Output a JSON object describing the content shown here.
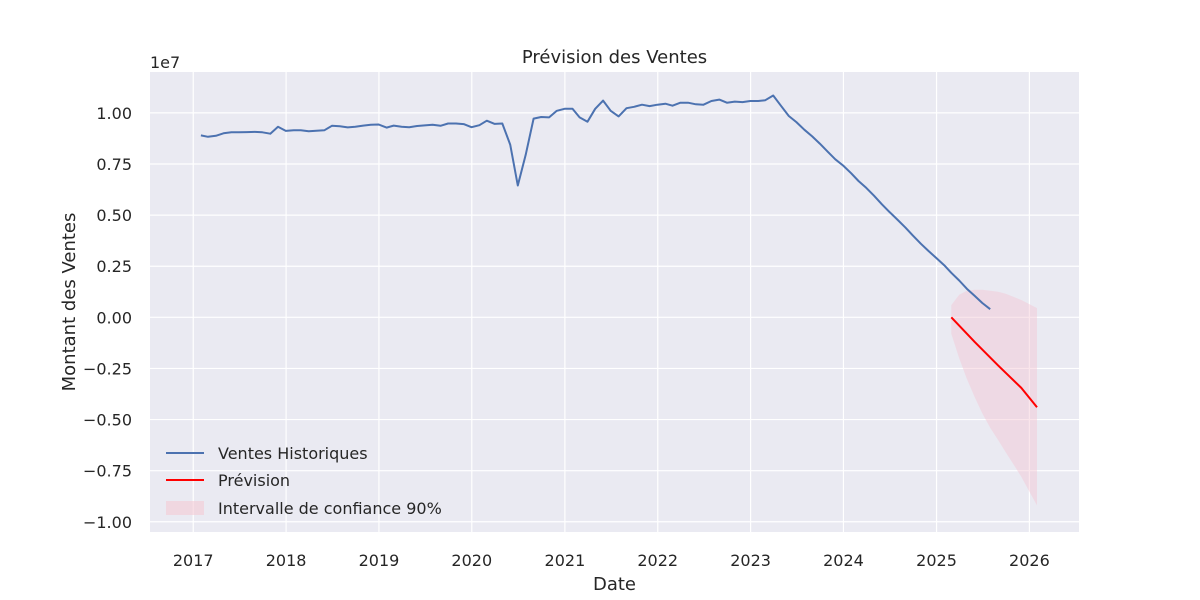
{
  "chart_data": {
    "type": "line",
    "title": "Prévision des Ventes",
    "xlabel": "Date",
    "ylabel": "Montant des Ventes",
    "y_offset_label": "1e7",
    "y_scale": 10000000,
    "xlim": [
      "2016-07-15",
      "2026-07-15"
    ],
    "ylim": [
      -1.05,
      1.2
    ],
    "x_ticks": [
      {
        "date": "2017-01-01",
        "label": "2017"
      },
      {
        "date": "2018-01-01",
        "label": "2018"
      },
      {
        "date": "2019-01-01",
        "label": "2019"
      },
      {
        "date": "2020-01-01",
        "label": "2020"
      },
      {
        "date": "2021-01-01",
        "label": "2021"
      },
      {
        "date": "2022-01-01",
        "label": "2022"
      },
      {
        "date": "2023-01-01",
        "label": "2023"
      },
      {
        "date": "2024-01-01",
        "label": "2024"
      },
      {
        "date": "2025-01-01",
        "label": "2025"
      },
      {
        "date": "2026-01-01",
        "label": "2026"
      }
    ],
    "y_ticks": [
      {
        "value": 1.0,
        "label": "1.00"
      },
      {
        "value": 0.75,
        "label": "0.75"
      },
      {
        "value": 0.5,
        "label": "0.50"
      },
      {
        "value": 0.25,
        "label": "0.25"
      },
      {
        "value": 0.0,
        "label": "0.00"
      },
      {
        "value": -0.25,
        "label": "−0.25"
      },
      {
        "value": -0.5,
        "label": "−0.50"
      },
      {
        "value": -0.75,
        "label": "−0.75"
      },
      {
        "value": -1.0,
        "label": "−1.00"
      }
    ],
    "grid": true,
    "legend_position": "lower-left",
    "series": [
      {
        "name": "Ventes Historiques",
        "color": "#4c72b0",
        "points": [
          [
            "2017-01-31",
            0.89
          ],
          [
            "2017-02-28",
            0.883
          ],
          [
            "2017-03-31",
            0.888
          ],
          [
            "2017-04-30",
            0.9
          ],
          [
            "2017-05-31",
            0.905
          ],
          [
            "2017-06-30",
            0.905
          ],
          [
            "2017-07-31",
            0.906
          ],
          [
            "2017-08-31",
            0.907
          ],
          [
            "2017-09-30",
            0.905
          ],
          [
            "2017-10-31",
            0.898
          ],
          [
            "2017-11-30",
            0.932
          ],
          [
            "2017-12-31",
            0.912
          ],
          [
            "2018-01-31",
            0.915
          ],
          [
            "2018-02-28",
            0.915
          ],
          [
            "2018-03-31",
            0.91
          ],
          [
            "2018-04-30",
            0.913
          ],
          [
            "2018-05-31",
            0.915
          ],
          [
            "2018-06-30",
            0.937
          ],
          [
            "2018-07-31",
            0.935
          ],
          [
            "2018-08-31",
            0.929
          ],
          [
            "2018-09-30",
            0.932
          ],
          [
            "2018-10-31",
            0.938
          ],
          [
            "2018-11-30",
            0.942
          ],
          [
            "2018-12-31",
            0.943
          ],
          [
            "2019-01-31",
            0.928
          ],
          [
            "2019-02-28",
            0.938
          ],
          [
            "2019-03-31",
            0.932
          ],
          [
            "2019-04-30",
            0.93
          ],
          [
            "2019-05-31",
            0.936
          ],
          [
            "2019-06-30",
            0.939
          ],
          [
            "2019-07-31",
            0.942
          ],
          [
            "2019-08-31",
            0.937
          ],
          [
            "2019-09-30",
            0.948
          ],
          [
            "2019-10-31",
            0.948
          ],
          [
            "2019-11-30",
            0.945
          ],
          [
            "2019-12-31",
            0.93
          ],
          [
            "2020-01-31",
            0.94
          ],
          [
            "2020-02-29",
            0.962
          ],
          [
            "2020-03-31",
            0.946
          ],
          [
            "2020-04-30",
            0.948
          ],
          [
            "2020-05-31",
            0.845
          ],
          [
            "2020-06-30",
            0.645
          ],
          [
            "2020-07-31",
            0.795
          ],
          [
            "2020-08-31",
            0.972
          ],
          [
            "2020-09-30",
            0.98
          ],
          [
            "2020-10-31",
            0.978
          ],
          [
            "2020-11-30",
            1.01
          ],
          [
            "2020-12-31",
            1.02
          ],
          [
            "2021-01-31",
            1.02
          ],
          [
            "2021-02-28",
            0.978
          ],
          [
            "2021-03-31",
            0.957
          ],
          [
            "2021-04-30",
            1.02
          ],
          [
            "2021-05-31",
            1.06
          ],
          [
            "2021-06-30",
            1.01
          ],
          [
            "2021-07-31",
            0.983
          ],
          [
            "2021-08-31",
            1.023
          ],
          [
            "2021-09-30",
            1.03
          ],
          [
            "2021-10-31",
            1.04
          ],
          [
            "2021-11-30",
            1.033
          ],
          [
            "2021-12-31",
            1.04
          ],
          [
            "2022-01-31",
            1.045
          ],
          [
            "2022-02-28",
            1.035
          ],
          [
            "2022-03-31",
            1.05
          ],
          [
            "2022-04-30",
            1.05
          ],
          [
            "2022-05-31",
            1.042
          ],
          [
            "2022-06-30",
            1.04
          ],
          [
            "2022-07-31",
            1.058
          ],
          [
            "2022-08-31",
            1.065
          ],
          [
            "2022-09-30",
            1.05
          ],
          [
            "2022-10-31",
            1.055
          ],
          [
            "2022-11-30",
            1.053
          ],
          [
            "2022-12-31",
            1.058
          ],
          [
            "2023-01-31",
            1.058
          ],
          [
            "2023-02-28",
            1.062
          ],
          [
            "2023-03-31",
            1.085
          ],
          [
            "2023-04-30",
            1.035
          ],
          [
            "2023-05-31",
            0.985
          ],
          [
            "2023-06-30",
            0.955
          ],
          [
            "2023-07-31",
            0.918
          ],
          [
            "2023-08-31",
            0.885
          ],
          [
            "2023-09-30",
            0.85
          ],
          [
            "2023-10-31",
            0.81
          ],
          [
            "2023-11-30",
            0.773
          ],
          [
            "2023-12-31",
            0.742
          ],
          [
            "2024-01-31",
            0.705
          ],
          [
            "2024-02-29",
            0.667
          ],
          [
            "2024-03-31",
            0.633
          ],
          [
            "2024-04-30",
            0.595
          ],
          [
            "2024-05-31",
            0.553
          ],
          [
            "2024-06-30",
            0.515
          ],
          [
            "2024-07-31",
            0.478
          ],
          [
            "2024-08-31",
            0.44
          ],
          [
            "2024-09-30",
            0.4
          ],
          [
            "2024-10-31",
            0.36
          ],
          [
            "2024-11-30",
            0.325
          ],
          [
            "2024-12-31",
            0.29
          ],
          [
            "2025-01-31",
            0.255
          ],
          [
            "2025-02-28",
            0.218
          ],
          [
            "2025-03-31",
            0.18
          ],
          [
            "2025-04-30",
            0.14
          ],
          [
            "2025-05-31",
            0.105
          ],
          [
            "2025-06-30",
            0.07
          ],
          [
            "2025-07-31",
            0.04
          ]
        ]
      },
      {
        "name": "Prévision",
        "color": "#ff0000",
        "points": [
          [
            "2025-02-28",
            0.0
          ],
          [
            "2025-05-31",
            -0.12
          ],
          [
            "2025-08-31",
            -0.235
          ],
          [
            "2025-11-30",
            -0.345
          ],
          [
            "2026-01-31",
            -0.44
          ]
        ]
      }
    ],
    "confidence_band": {
      "name": "Intervalle de confiance 90%",
      "color": "#f4c6d2",
      "points": [
        [
          "2025-02-28",
          0.06,
          -0.08
        ],
        [
          "2025-03-31",
          0.11,
          -0.2
        ],
        [
          "2025-04-30",
          0.13,
          -0.3
        ],
        [
          "2025-05-31",
          0.135,
          -0.39
        ],
        [
          "2025-06-30",
          0.135,
          -0.47
        ],
        [
          "2025-07-31",
          0.13,
          -0.54
        ],
        [
          "2025-08-31",
          0.125,
          -0.6
        ],
        [
          "2025-09-30",
          0.115,
          -0.66
        ],
        [
          "2025-10-31",
          0.1,
          -0.72
        ],
        [
          "2025-11-30",
          0.085,
          -0.78
        ],
        [
          "2025-12-31",
          0.065,
          -0.85
        ],
        [
          "2026-01-31",
          0.045,
          -0.92
        ]
      ]
    }
  }
}
